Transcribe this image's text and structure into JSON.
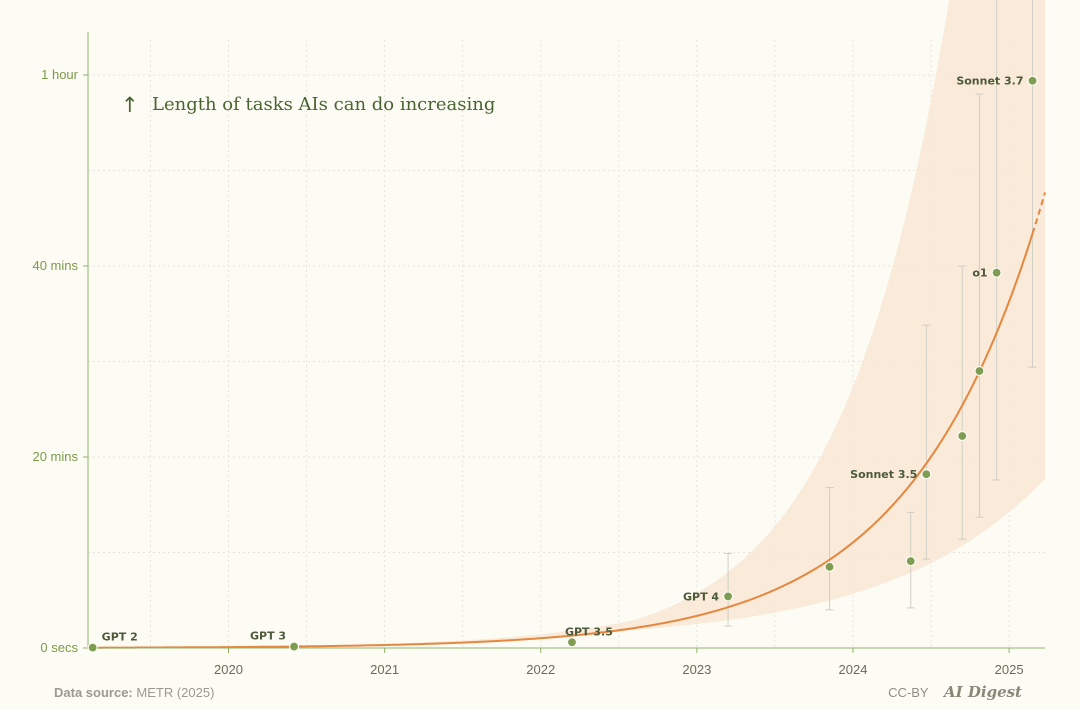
{
  "footer": {
    "source_label": "Data source:",
    "source_value": "METR (2025)",
    "license": "CC-BY",
    "brand": "AI Digest"
  },
  "chart_data": {
    "type": "scatter",
    "title": "Length of tasks AIs can do increasing",
    "title_icon": "up-arrow-icon",
    "xlabel": "",
    "ylabel": "",
    "x_ticks": [
      "2020",
      "2021",
      "2022",
      "2023",
      "2024",
      "2025"
    ],
    "y_ticks": [
      {
        "value": 0,
        "label": "0 secs"
      },
      {
        "value": 20,
        "label": "20 mins"
      },
      {
        "value": 40,
        "label": "40 mins"
      },
      {
        "value": 60,
        "label": "1 hour"
      }
    ],
    "xlim": [
      2019.1,
      2025.23
    ],
    "ylim": [
      0,
      65
    ],
    "y_unit": "minutes",
    "grid": true,
    "colors": {
      "point": "#7e9d52",
      "trend": "#e5873e",
      "band": "#f9e6d3",
      "error_bar": "#cfcfc4",
      "axis": "#8fb36a"
    },
    "points": [
      {
        "label": "GPT 2",
        "x": 2019.13,
        "y": 0.04,
        "err": null
      },
      {
        "label": "GPT 3",
        "x": 2020.42,
        "y": 0.15,
        "err": null
      },
      {
        "label": "GPT 3.5",
        "x": 2022.2,
        "y": 0.6,
        "err": null
      },
      {
        "label": "GPT 4",
        "x": 2023.2,
        "y": 5.4,
        "err": [
          2.3,
          9.9
        ]
      },
      {
        "label": "",
        "x": 2023.85,
        "y": 8.5,
        "err": [
          4.0,
          16.8
        ]
      },
      {
        "label": "",
        "x": 2024.37,
        "y": 9.1,
        "err": [
          4.2,
          14.2
        ]
      },
      {
        "label": "Sonnet 3.5",
        "x": 2024.47,
        "y": 18.2,
        "err": [
          9.3,
          33.8
        ]
      },
      {
        "label": "",
        "x": 2024.7,
        "y": 22.2,
        "err": [
          11.4,
          40.0
        ]
      },
      {
        "label": "",
        "x": 2024.81,
        "y": 29.0,
        "err": [
          13.7,
          58.0
        ]
      },
      {
        "label": "o1",
        "x": 2024.92,
        "y": 39.3,
        "err": [
          17.6,
          80.0
        ]
      },
      {
        "label": "Sonnet 3.7",
        "x": 2025.15,
        "y": 59.4,
        "err": [
          29.4,
          75.0
        ]
      }
    ],
    "trend": {
      "model": "exponential",
      "anchor_x": 2024.92,
      "anchor_y_minutes": 33,
      "doubling_time_years": 0.583,
      "solid_until": 2025.15,
      "dashed_until": 2025.23
    }
  }
}
